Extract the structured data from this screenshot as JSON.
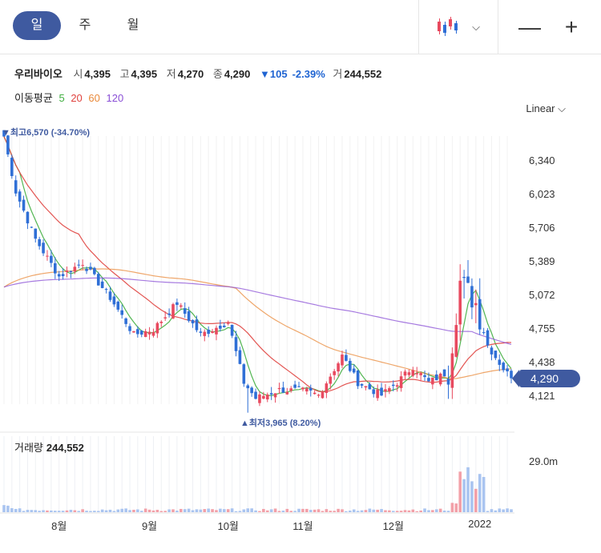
{
  "toolbar": {
    "tabs": [
      "일",
      "주",
      "월"
    ],
    "active_tab": 0,
    "zoom_out": "—",
    "zoom_in": "+",
    "chevron": "⌵"
  },
  "quote": {
    "name": "우리바이오",
    "open_label": "시",
    "open": "4,395",
    "high_label": "고",
    "high": "4,395",
    "low_label": "저",
    "low": "4,270",
    "close_label": "종",
    "close": "4,290",
    "change": "▼105",
    "change_pct": "-2.39%",
    "volume_label": "거",
    "volume": "244,552"
  },
  "ma": {
    "label": "이동평균",
    "periods": [
      {
        "text": "5",
        "color": "#3fae3f"
      },
      {
        "text": "20",
        "color": "#e0433f"
      },
      {
        "text": "60",
        "color": "#e9893a"
      },
      {
        "text": "120",
        "color": "#8a4fd6"
      }
    ]
  },
  "scale": "Linear",
  "annotations": {
    "high": "▼최고6,570 (-34.70%)",
    "low": "▲최저3,965 (8.20%)"
  },
  "volume_panel": {
    "title": "거래량",
    "value": "244,552",
    "axis_max": "29.0m"
  },
  "colors": {
    "up": "#e84a5f",
    "down": "#2f6fd6",
    "accent": "#3f5aa0",
    "vol_up": "#f2a0a8",
    "vol_down": "#a9c4f0"
  },
  "chart_data": {
    "type": "candlestick",
    "y_ticks": [
      "6,340",
      "6,023",
      "5,706",
      "5,389",
      "5,072",
      "4,755",
      "4,438",
      "4,121"
    ],
    "y_tick_values": [
      6340,
      6023,
      5706,
      5389,
      5072,
      4755,
      4438,
      4121
    ],
    "current_price": "4,290",
    "current_price_value": 4290,
    "x_labels": [
      "8월",
      "9월",
      "10월",
      "11월",
      "12월",
      "2022"
    ],
    "x_label_index": [
      14,
      37,
      57,
      76,
      99,
      121
    ],
    "high_value": 6570,
    "high_index": 0,
    "low_value": 3965,
    "low_index": 62,
    "volume_max": 29.0,
    "series": [
      {
        "name": "5",
        "color": "#3fae3f"
      },
      {
        "name": "20",
        "color": "#e0433f"
      },
      {
        "name": "60",
        "color": "#e9893a"
      },
      {
        "name": "120",
        "color": "#8a4fd6"
      }
    ]
  }
}
